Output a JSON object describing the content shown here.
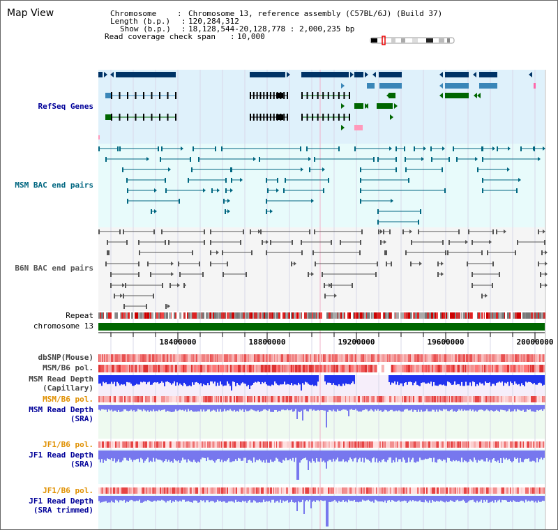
{
  "view_title": "Map View",
  "info": {
    "chromosome_key": "Chromosome",
    "chromosome_val": "Chromosome 13, reference assembly (C57BL/6J) (Build 37)",
    "length_key": "Length (b.p.)",
    "length_val": "120,284,312",
    "show_key": "Show (b.p.)",
    "show_val": "18,128,544-20,128,778 : 2,000,235 bp",
    "coverage_key": "Read coverage check span",
    "coverage_val": "10,000"
  },
  "colors": {
    "refseq_bg": "#dff1fb",
    "msm_bac_bg": "#e8fbfb",
    "b6n_bac_bg": "#f5f5f5",
    "refseq_label": "#000099",
    "msm_bac_label": "#006680",
    "b6n_bac_label": "#555555",
    "pol_label": "#e09000",
    "depth_label": "#000099",
    "gene_dark": "#003366",
    "gene_mid": "#3a86b8",
    "gene_green": "#006600",
    "chromosome_bar": "#006600",
    "depth_blue": "#2233ee"
  },
  "tracks": {
    "refseq": "RefSeq Genes",
    "msm_bac": "MSM BAC end pairs",
    "b6n_bac": "B6N BAC end pairs",
    "repeat": "Repeat",
    "chromosome": "chromosome 13",
    "dbsnp": "dbSNP(Mouse)",
    "msm_b6_pol_1": "MSM/B6 pol.",
    "msm_depth_cap_1": "MSM Read Depth",
    "msm_depth_cap_2": "(Capillary)",
    "msm_b6_pol_2": "MSM/B6 pol.",
    "msm_depth_sra_1": "MSM Read Depth",
    "msm_depth_sra_2": "(SRA)",
    "jf1_b6_pol_1": "JF1/B6 pol.",
    "jf1_depth_sra_1": "JF1 Read Depth",
    "jf1_depth_sra_2": "(SRA)",
    "jf1_b6_pol_2": "JF1/B6 pol.",
    "jf1_depth_trim_1": "JF1 Read Depth",
    "jf1_depth_trim_2": "(SRA trimmed)"
  },
  "axis": {
    "range_start": 18128544,
    "range_end": 20128778,
    "ticks": [
      "18400000",
      "18800000",
      "19200000",
      "19600000",
      "20000000"
    ]
  }
}
